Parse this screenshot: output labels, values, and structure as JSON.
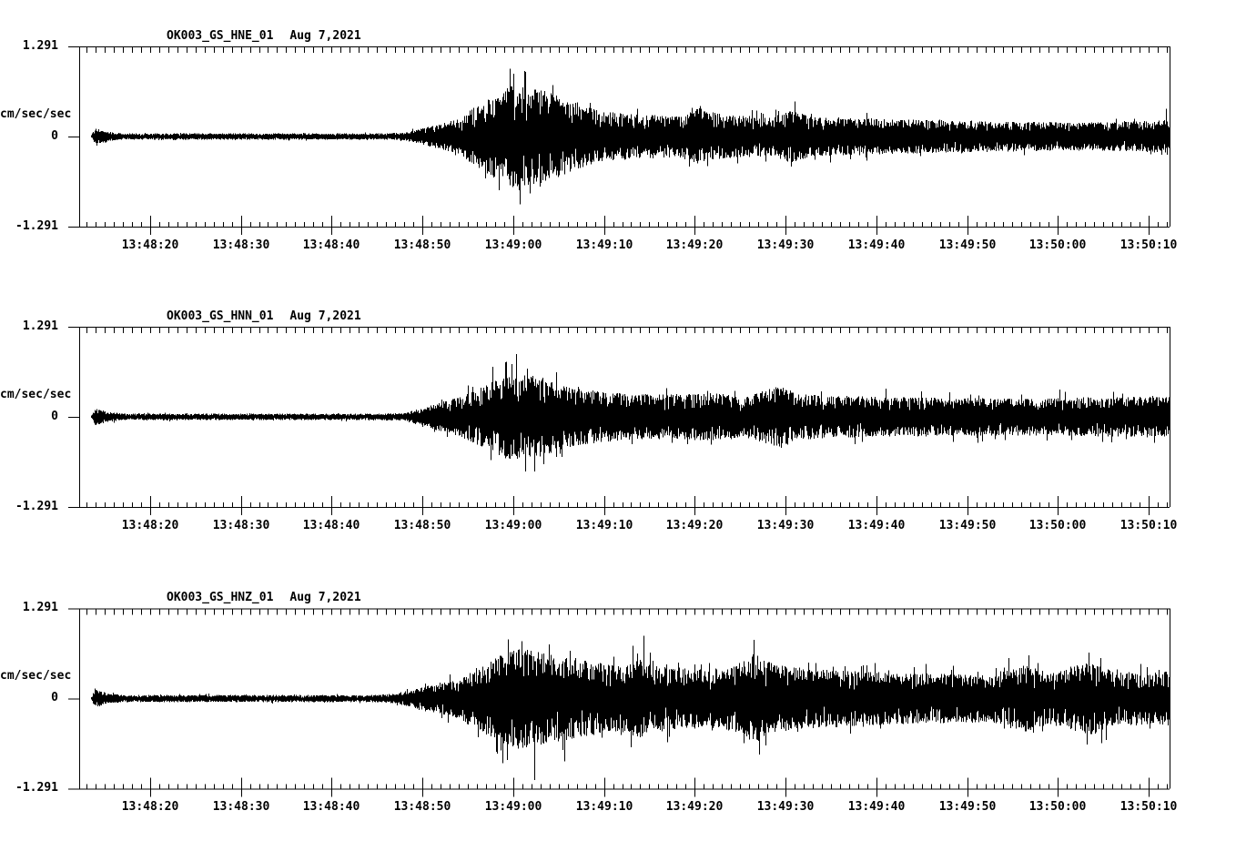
{
  "figure": {
    "background": "#ffffff",
    "trace_color": "#000000"
  },
  "chart_data": {
    "type": "line",
    "kind": "three-component strong-motion seismogram",
    "units": "cm/sec/sec",
    "x_axis_start": "13:48:12",
    "x_axis_end": "13:50:12",
    "x_major_tick_sec": 10,
    "x_minor_tick_sec": 1,
    "x_tick_labels": [
      "13:48:20",
      "13:48:30",
      "13:48:40",
      "13:48:50",
      "13:49:00",
      "13:49:10",
      "13:49:20",
      "13:49:30",
      "13:49:40",
      "13:49:50",
      "13:50:00",
      "13:50:10"
    ],
    "panels": [
      {
        "title": "OK003_GS_HNE_01",
        "date": "Aug 7,2021",
        "ylabel": "cm/sec/sec",
        "y_ticks": [
          "1.291",
          "0",
          "-1.291"
        ],
        "ylim": [
          -1.291,
          1.291
        ],
        "trace_start_sec_after_1348": 13.5,
        "envelope_points": [
          [
            13.5,
            0.02
          ],
          [
            13.9,
            0.12
          ],
          [
            15.5,
            0.07
          ],
          [
            17,
            0.045
          ],
          [
            45,
            0.045
          ],
          [
            48,
            0.055
          ],
          [
            52,
            0.18
          ],
          [
            54,
            0.26
          ],
          [
            56,
            0.45
          ],
          [
            58,
            0.6
          ],
          [
            60,
            0.74
          ],
          [
            62,
            0.7
          ],
          [
            64,
            0.64
          ],
          [
            66,
            0.52
          ],
          [
            68,
            0.44
          ],
          [
            70,
            0.36
          ],
          [
            74,
            0.31
          ],
          [
            78,
            0.3
          ],
          [
            80.5,
            0.42
          ],
          [
            82.5,
            0.33
          ],
          [
            85,
            0.3
          ],
          [
            88,
            0.28
          ],
          [
            90.5,
            0.38
          ],
          [
            93,
            0.28
          ],
          [
            97,
            0.27
          ],
          [
            102,
            0.25
          ],
          [
            107,
            0.24
          ],
          [
            112,
            0.22
          ],
          [
            117,
            0.21
          ],
          [
            122,
            0.2
          ],
          [
            127,
            0.21
          ],
          [
            132.3,
            0.24
          ]
        ],
        "extreme_spikes": [
          [
            60.7,
            -0.97
          ],
          [
            59.6,
            0.7
          ],
          [
            64.3,
            0.74
          ],
          [
            56.9,
            -0.6
          ],
          [
            62.9,
            -0.72
          ],
          [
            131.9,
            0.4
          ]
        ]
      },
      {
        "title": "OK003_GS_HNN_01",
        "date": "Aug 7,2021",
        "ylabel": "cm/sec/sec",
        "y_ticks": [
          "1.291",
          "0",
          "-1.291"
        ],
        "ylim": [
          -1.291,
          1.291
        ],
        "trace_start_sec_after_1348": 13.5,
        "envelope_points": [
          [
            13.5,
            0.02
          ],
          [
            13.9,
            0.12
          ],
          [
            15.5,
            0.07
          ],
          [
            17,
            0.045
          ],
          [
            45,
            0.045
          ],
          [
            48,
            0.06
          ],
          [
            52,
            0.21
          ],
          [
            54,
            0.28
          ],
          [
            56,
            0.4
          ],
          [
            58,
            0.52
          ],
          [
            59.5,
            0.62
          ],
          [
            61,
            0.6
          ],
          [
            63,
            0.58
          ],
          [
            65,
            0.48
          ],
          [
            67,
            0.41
          ],
          [
            70,
            0.36
          ],
          [
            73,
            0.33
          ],
          [
            77,
            0.32
          ],
          [
            82,
            0.34
          ],
          [
            86,
            0.31
          ],
          [
            89.5,
            0.45
          ],
          [
            91.5,
            0.33
          ],
          [
            95,
            0.31
          ],
          [
            100,
            0.29
          ],
          [
            105,
            0.28
          ],
          [
            110,
            0.27
          ],
          [
            115,
            0.27
          ],
          [
            120,
            0.27
          ],
          [
            125,
            0.28
          ],
          [
            132.3,
            0.3
          ]
        ],
        "extreme_spikes": [
          [
            60.3,
            0.9
          ],
          [
            59.1,
            0.78
          ],
          [
            62.3,
            -0.78
          ],
          [
            64.7,
            0.64
          ],
          [
            57.5,
            -0.62
          ]
        ]
      },
      {
        "title": "OK003_GS_HNZ_01",
        "date": "Aug 7,2021",
        "ylabel": "cm/sec/sec",
        "y_ticks": [
          "1.291",
          "0",
          "-1.291"
        ],
        "ylim": [
          -1.291,
          1.291
        ],
        "trace_start_sec_after_1348": 13.5,
        "envelope_points": [
          [
            13.5,
            0.02
          ],
          [
            13.9,
            0.13
          ],
          [
            15.5,
            0.07
          ],
          [
            17,
            0.05
          ],
          [
            44,
            0.05
          ],
          [
            47,
            0.07
          ],
          [
            52,
            0.23
          ],
          [
            54,
            0.3
          ],
          [
            56,
            0.45
          ],
          [
            58,
            0.58
          ],
          [
            59.5,
            0.7
          ],
          [
            61.5,
            0.71
          ],
          [
            63.5,
            0.66
          ],
          [
            65,
            0.62
          ],
          [
            67,
            0.56
          ],
          [
            69,
            0.52
          ],
          [
            71.5,
            0.48
          ],
          [
            73.5,
            0.58
          ],
          [
            75.5,
            0.47
          ],
          [
            78,
            0.45
          ],
          [
            81,
            0.42
          ],
          [
            84,
            0.45
          ],
          [
            86.5,
            0.66
          ],
          [
            88.5,
            0.5
          ],
          [
            90,
            0.48
          ],
          [
            93,
            0.43
          ],
          [
            97,
            0.4
          ],
          [
            102,
            0.37
          ],
          [
            107,
            0.36
          ],
          [
            112,
            0.34
          ],
          [
            116.5,
            0.48
          ],
          [
            119,
            0.37
          ],
          [
            123.5,
            0.53
          ],
          [
            126,
            0.39
          ],
          [
            130,
            0.37
          ],
          [
            132.3,
            0.39
          ]
        ],
        "extreme_spikes": [
          [
            62.3,
            -1.17
          ],
          [
            60.9,
            0.82
          ],
          [
            59.3,
            -0.88
          ],
          [
            74.4,
            0.9
          ],
          [
            73.0,
            -0.7
          ],
          [
            86.5,
            0.84
          ],
          [
            87.1,
            -0.8
          ],
          [
            116.8,
            0.62
          ],
          [
            123.4,
            0.66
          ],
          [
            65.6,
            -0.9
          ]
        ]
      }
    ]
  }
}
